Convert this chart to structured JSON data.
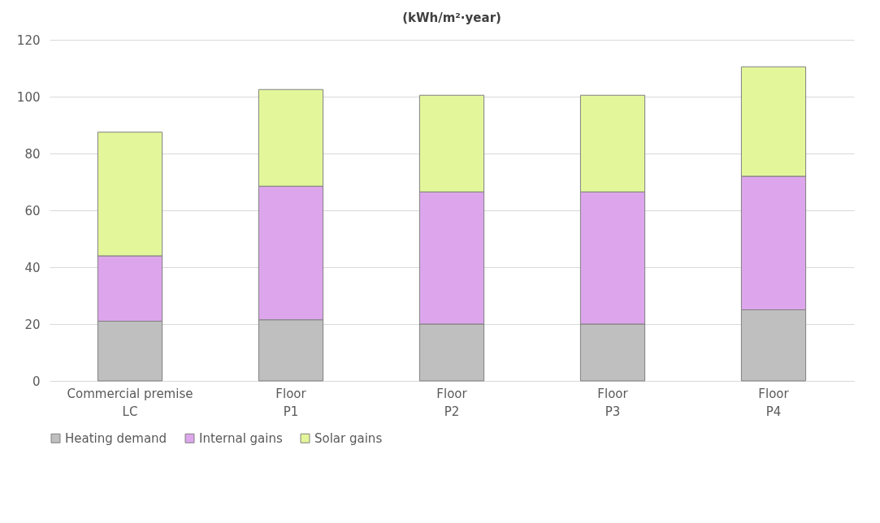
{
  "chart_data": {
    "type": "bar",
    "stacked": true,
    "title": "(kWh/m²·year)",
    "categories": [
      "Commercial premise\nLC",
      "Floor\nP1",
      "Floor\nP2",
      "Floor\nP3",
      "Floor\nP4"
    ],
    "series": [
      {
        "name": "Heating demand",
        "color": "#bfbfbf",
        "values": [
          21,
          21.5,
          20,
          20,
          25
        ]
      },
      {
        "name": "Internal gains",
        "color": "#dda6ec",
        "values": [
          23,
          47,
          46.5,
          46.5,
          47
        ]
      },
      {
        "name": "Solar gains",
        "color": "#e3f79a",
        "values": [
          43.5,
          34,
          34,
          34,
          38.5
        ]
      }
    ],
    "ylim": [
      0,
      120
    ],
    "yticks": [
      0,
      20,
      40,
      60,
      80,
      100,
      120
    ],
    "grid": "y",
    "legend": "bottom"
  }
}
